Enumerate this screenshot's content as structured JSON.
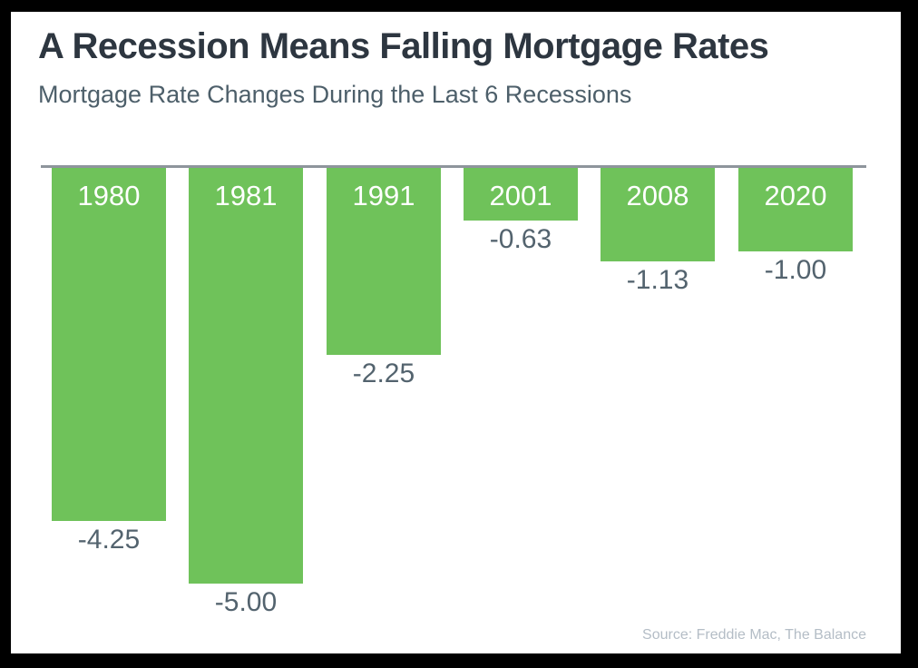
{
  "page": {
    "title": "A Recession Means Falling Mortgage Rates",
    "subtitle": "Mortgage Rate Changes During the Last 6 Recessions",
    "source": "Source: Freddie Mac, The Balance"
  },
  "colors": {
    "bar": "#6fc25a",
    "title_text": "#2d3640",
    "subtitle_text": "#4d5f6a",
    "year_label_text": "#ffffff",
    "value_label_text": "#53636e",
    "baseline": "#8e959c",
    "source_text": "#b4bdc6",
    "panel_background": "#ffffff",
    "frame": "#000000"
  },
  "chart_data": {
    "type": "bar",
    "title": "A Recession Means Falling Mortgage Rates",
    "subtitle": "Mortgage Rate Changes During the Last 6 Recessions",
    "categories": [
      "1980",
      "1981",
      "1991",
      "2001",
      "2008",
      "2020"
    ],
    "values": [
      -4.25,
      -5.0,
      -2.25,
      -0.63,
      -1.13,
      -1.0
    ],
    "value_labels": [
      "-4.25",
      "-5.00",
      "-2.25",
      "-0.63",
      "-1.13",
      "-1.00"
    ],
    "xlabel": "",
    "ylabel": "",
    "ylim": [
      -5.5,
      0
    ],
    "orientation": "vertical",
    "grid": false,
    "legend": false,
    "category_label_position": "inside-top",
    "value_label_position": "below-bar",
    "source": "Source: Freddie Mac, The Balance"
  }
}
